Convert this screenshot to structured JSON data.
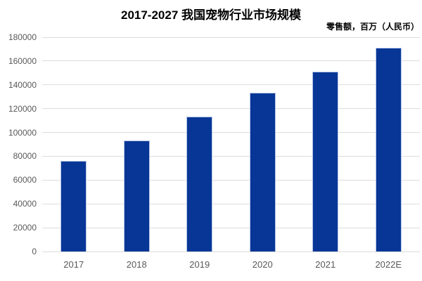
{
  "chart_data": {
    "type": "bar",
    "title": "2017-2027 我国宠物行业市场规模",
    "subtitle": "零售额，百万（人民币）",
    "categories": [
      "2017",
      "2018",
      "2019",
      "2020",
      "2021",
      "2022E"
    ],
    "values": [
      76000,
      93000,
      113500,
      133500,
      151000,
      171000
    ],
    "xlabel": "",
    "ylabel": "",
    "ylim": [
      0,
      180000
    ],
    "yticks": [
      0,
      20000,
      40000,
      60000,
      80000,
      100000,
      120000,
      140000,
      160000,
      180000
    ],
    "grid": true,
    "legend": "none",
    "colors": {
      "bar": "#083696",
      "bar_border": "#b6c6e8",
      "gridline": "#dcdcdc",
      "axis_tick_label": "#595959",
      "title": "#000000",
      "background": "#ffffff"
    }
  }
}
